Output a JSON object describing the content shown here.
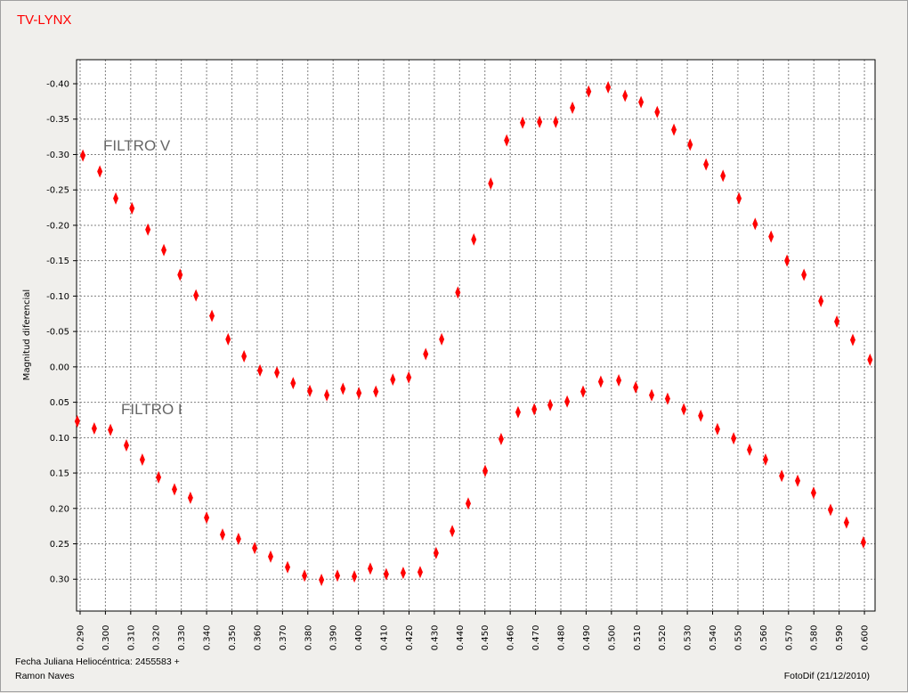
{
  "chart_data": {
    "type": "scatter",
    "title": "TV-LYNX",
    "y_label": "Magnitud diferencial",
    "x_label": "Fecha Juliana Heliocéntrica: 2455583 +",
    "footnote_left": "Ramon Naves",
    "footnote_right": "FotoDif (21/12/2010)",
    "annotations": [
      "FILTRO V",
      "FILTRO I"
    ],
    "xlim": [
      0.2886,
      0.6042
    ],
    "ylim": [
      -0.434,
      0.345
    ],
    "y_inverted": true,
    "grid": true,
    "xticks": [
      {
        "value": 0.29,
        "label": "0.290"
      },
      {
        "value": 0.3,
        "label": "0.300"
      },
      {
        "value": 0.31,
        "label": "0.310"
      },
      {
        "value": 0.32,
        "label": "0.320"
      },
      {
        "value": 0.33,
        "label": "0.330"
      },
      {
        "value": 0.34,
        "label": "0.340"
      },
      {
        "value": 0.35,
        "label": "0.350"
      },
      {
        "value": 0.36,
        "label": "0.360"
      },
      {
        "value": 0.37,
        "label": "0.370"
      },
      {
        "value": 0.38,
        "label": "0.380"
      },
      {
        "value": 0.39,
        "label": "0.390"
      },
      {
        "value": 0.4,
        "label": "0.400"
      },
      {
        "value": 0.41,
        "label": "0.410"
      },
      {
        "value": 0.42,
        "label": "0.420"
      },
      {
        "value": 0.43,
        "label": "0.430"
      },
      {
        "value": 0.44,
        "label": "0.440"
      },
      {
        "value": 0.45,
        "label": "0.450"
      },
      {
        "value": 0.46,
        "label": "0.460"
      },
      {
        "value": 0.47,
        "label": "0.470"
      },
      {
        "value": 0.48,
        "label": "0.480"
      },
      {
        "value": 0.49,
        "label": "0.490"
      },
      {
        "value": 0.5,
        "label": "0.500"
      },
      {
        "value": 0.51,
        "label": "0.510"
      },
      {
        "value": 0.52,
        "label": "0.520"
      },
      {
        "value": 0.53,
        "label": "0.530"
      },
      {
        "value": 0.54,
        "label": "0.540"
      },
      {
        "value": 0.55,
        "label": "0.550"
      },
      {
        "value": 0.56,
        "label": "0.560"
      },
      {
        "value": 0.57,
        "label": "0.570"
      },
      {
        "value": 0.58,
        "label": "0.580"
      },
      {
        "value": 0.59,
        "label": "0.590"
      },
      {
        "value": 0.6,
        "label": "0.600"
      }
    ],
    "yticks": [
      {
        "value": -0.4,
        "label": "-0.40"
      },
      {
        "value": -0.35,
        "label": "-0.35"
      },
      {
        "value": -0.3,
        "label": "-0.30"
      },
      {
        "value": -0.25,
        "label": "-0.25"
      },
      {
        "value": -0.2,
        "label": "-0.20"
      },
      {
        "value": -0.15,
        "label": "-0.15"
      },
      {
        "value": -0.1,
        "label": "-0.10"
      },
      {
        "value": -0.05,
        "label": "-0.05"
      },
      {
        "value": 0,
        "label": "0.00"
      },
      {
        "value": 0.05,
        "label": "0.05"
      },
      {
        "value": 0.1,
        "label": "0.10"
      },
      {
        "value": 0.15,
        "label": "0.15"
      },
      {
        "value": 0.2,
        "label": "0.20"
      },
      {
        "value": 0.25,
        "label": "0.25"
      },
      {
        "value": 0.3,
        "label": "0.30"
      }
    ],
    "series": [
      {
        "color": "#ff0000",
        "x": [
          0.2911,
          0.2978,
          0.3041,
          0.3105,
          0.3168,
          0.3231,
          0.3295,
          0.3358,
          0.3421,
          0.3485,
          0.3548,
          0.3611,
          0.3678,
          0.3742,
          0.3808,
          0.3875,
          0.3939,
          0.4002,
          0.4069,
          0.4136,
          0.4199,
          0.4266,
          0.4329,
          0.4393,
          0.4456,
          0.4523,
          0.4586,
          0.4649,
          0.4716,
          0.478,
          0.4846,
          0.491,
          0.4987,
          0.5054,
          0.5117,
          0.5181,
          0.5247,
          0.5311,
          0.5374,
          0.5441,
          0.5504,
          0.5568,
          0.5631,
          0.5694,
          0.5761,
          0.5828,
          0.5891,
          0.5954,
          0.6022
        ],
        "values": [
          -0.2985,
          -0.276,
          -0.238,
          -0.224,
          -0.194,
          -0.165,
          -0.13,
          -0.101,
          -0.072,
          -0.039,
          -0.015,
          0.005,
          0.008,
          0.023,
          0.034,
          0.04,
          0.031,
          0.037,
          0.035,
          0.018,
          0.015,
          -0.018,
          -0.039,
          -0.105,
          -0.18,
          -0.259,
          -0.32,
          -0.345,
          -0.346,
          -0.346,
          -0.366,
          -0.389,
          -0.395,
          -0.383,
          -0.374,
          -0.36,
          -0.335,
          -0.314,
          -0.286,
          -0.27,
          -0.238,
          -0.202,
          -0.184,
          -0.15,
          -0.13,
          -0.093,
          -0.064,
          -0.038,
          -0.01
        ]
      },
      {
        "color": "#ff0000",
        "x": [
          0.2889,
          0.2956,
          0.302,
          0.3083,
          0.3146,
          0.321,
          0.3273,
          0.3336,
          0.34,
          0.3463,
          0.3526,
          0.359,
          0.3653,
          0.372,
          0.3787,
          0.3854,
          0.3917,
          0.3984,
          0.4047,
          0.411,
          0.4177,
          0.4244,
          0.4307,
          0.4371,
          0.4434,
          0.4501,
          0.4564,
          0.4631,
          0.4695,
          0.4758,
          0.4825,
          0.4888,
          0.4958,
          0.5029,
          0.5096,
          0.5159,
          0.5222,
          0.5286,
          0.5353,
          0.5419,
          0.5483,
          0.5546,
          0.5609,
          0.5673,
          0.5736,
          0.5799,
          0.5866,
          0.5929,
          0.5996
        ],
        "values": [
          0.077,
          0.087,
          0.089,
          0.111,
          0.131,
          0.156,
          0.173,
          0.185,
          0.213,
          0.237,
          0.243,
          0.256,
          0.268,
          0.283,
          0.295,
          0.301,
          0.295,
          0.296,
          0.285,
          0.293,
          0.291,
          0.29,
          0.263,
          0.232,
          0.193,
          0.147,
          0.102,
          0.064,
          0.06,
          0.054,
          0.049,
          0.035,
          0.021,
          0.019,
          0.029,
          0.04,
          0.045,
          0.06,
          0.069,
          0.088,
          0.101,
          0.117,
          0.131,
          0.154,
          0.161,
          0.178,
          0.202,
          0.22,
          0.248
        ]
      }
    ]
  }
}
